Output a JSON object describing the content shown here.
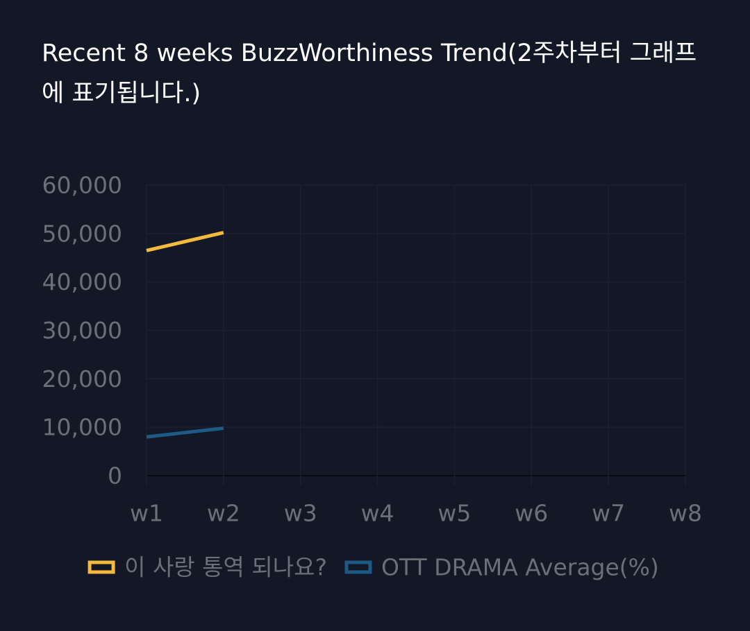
{
  "chart_data": {
    "type": "line",
    "title": "Recent 8 weeks BuzzWorthiness Trend(2주차부터 그래프에 표기됩니다.)",
    "categories": [
      "w1",
      "w2",
      "w3",
      "w4",
      "w5",
      "w6",
      "w7",
      "w8"
    ],
    "ylim": [
      0,
      60000
    ],
    "yticks": [
      "60,000",
      "50,000",
      "40,000",
      "30,000",
      "20,000",
      "10,000",
      "0"
    ],
    "ytick_values": [
      60000,
      50000,
      40000,
      30000,
      20000,
      10000,
      0
    ],
    "grid": true,
    "legend_position": "bottom",
    "series": [
      {
        "name": "이 사랑 통역 되나요?",
        "color": "#f5b93d",
        "values": [
          46500,
          50200,
          null,
          null,
          null,
          null,
          null,
          null
        ]
      },
      {
        "name": "OTT DRAMA Average(%)",
        "color": "#1d5a86",
        "values": [
          8000,
          9800,
          null,
          null,
          null,
          null,
          null,
          null
        ]
      }
    ]
  }
}
